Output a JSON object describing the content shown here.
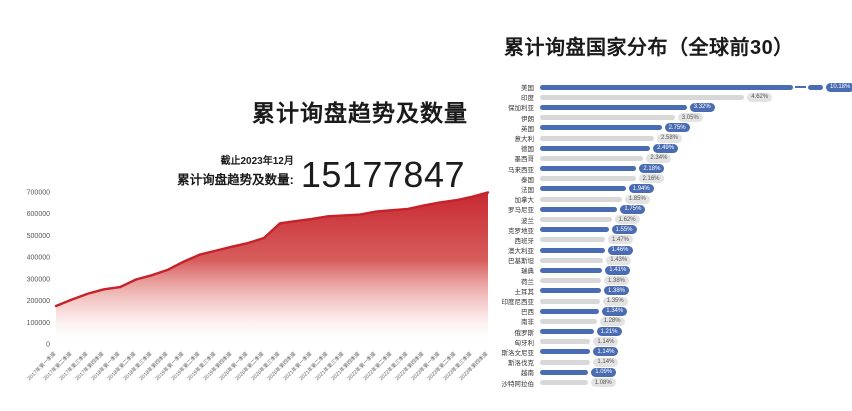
{
  "page": {
    "background": "#ffffff"
  },
  "trend_summary": {
    "as_of": "截止2023年12月",
    "label": "累计询盘趋势及数量:",
    "value": "15177847"
  },
  "colors": {
    "area_red": "#c5222a",
    "bar_blue": "#4a6cb3",
    "bar_gray": "#d8d8d8",
    "badge_gray_bg": "#e3e3e3",
    "text_dark": "#1a1a1a"
  },
  "chart_data": [
    {
      "type": "area",
      "title": "累计询盘趋势及数量",
      "xlabel": "",
      "ylabel": "",
      "ylim": [
        0,
        700000
      ],
      "yticks": [
        0,
        100000,
        200000,
        300000,
        400000,
        500000,
        600000,
        700000
      ],
      "grid": false,
      "line_color": "#c5222a",
      "fill_style": "vertical red gradient fading to white",
      "x": [
        "2017年第一季度",
        "2017年第二季度",
        "2017年第三季度",
        "2017年第四季度",
        "2018年第一季度",
        "2018年第二季度",
        "2018年第三季度",
        "2018年第四季度",
        "2019年第一季度",
        "2019年第二季度",
        "2019年第三季度",
        "2019年第四季度",
        "2020年第一季度",
        "2020年第二季度",
        "2020年第三季度",
        "2020年第四季度",
        "2021年第一季度",
        "2021年第二季度",
        "2021年第三季度",
        "2021年第四季度",
        "2022年第一季度",
        "2022年第二季度",
        "2022年第三季度",
        "2022年第四季度",
        "2023年第一季度",
        "2023年第二季度",
        "2023年第三季度",
        "2023年第四季度"
      ],
      "values": [
        175000,
        205000,
        232000,
        252000,
        262000,
        297000,
        317000,
        342000,
        380000,
        412000,
        430000,
        448000,
        465000,
        488000,
        556000,
        566000,
        576000,
        588000,
        592000,
        596000,
        610000,
        616000,
        622000,
        638000,
        652000,
        662000,
        678000,
        698000
      ]
    },
    {
      "type": "bar",
      "orientation": "horizontal",
      "title": "累计询盘国家分布（全球前30）",
      "unit": "%",
      "legend": "none",
      "first_bar_truncated": true,
      "alternating_colors": [
        "#4a6cb3",
        "#d8d8d8"
      ],
      "categories": [
        "美国",
        "印度",
        "保加利亚",
        "伊朗",
        "英国",
        "意大利",
        "德国",
        "墨西哥",
        "马来西亚",
        "泰国",
        "法国",
        "加拿大",
        "罗马尼亚",
        "波兰",
        "克罗地亚",
        "西班牙",
        "澳大利亚",
        "巴基斯坦",
        "瑞典",
        "荷兰",
        "土耳其",
        "印度尼西亚",
        "巴西",
        "南非",
        "俄罗斯",
        "匈牙利",
        "斯洛文尼亚",
        "斯洛伐克",
        "越南",
        "沙特阿拉伯"
      ],
      "values": [
        10.18,
        4.62,
        3.32,
        3.05,
        2.75,
        2.58,
        2.49,
        2.34,
        2.18,
        2.16,
        1.94,
        1.85,
        1.75,
        1.62,
        1.55,
        1.47,
        1.46,
        1.43,
        1.41,
        1.38,
        1.38,
        1.35,
        1.34,
        1.28,
        1.21,
        1.14,
        1.14,
        1.14,
        1.09,
        1.08
      ]
    }
  ]
}
